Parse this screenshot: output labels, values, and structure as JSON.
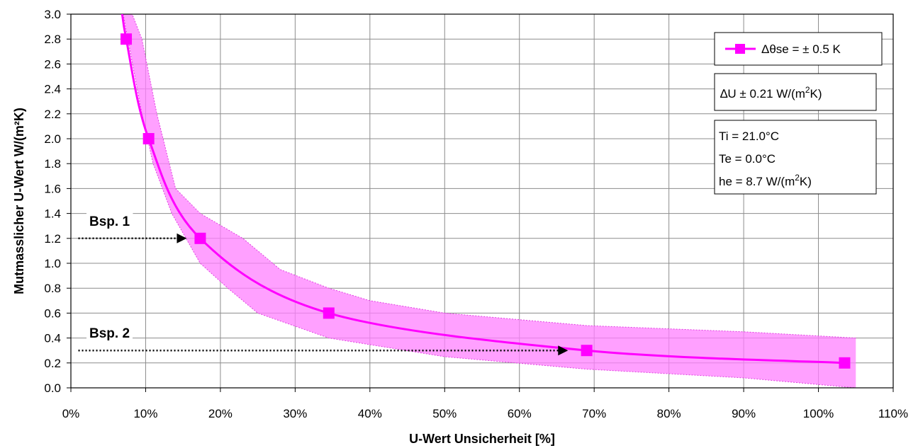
{
  "chart_data": {
    "type": "line",
    "xlabel": "U-Wert Unsicherheit [%]",
    "ylabel": "Mutmasslicher U-Wert W/(m²K)",
    "xlim": [
      0,
      110
    ],
    "ylim": [
      0,
      3.0
    ],
    "x_ticks": [
      "0%",
      "10%",
      "20%",
      "30%",
      "40%",
      "50%",
      "60%",
      "70%",
      "80%",
      "90%",
      "100%",
      "110%"
    ],
    "y_ticks": [
      "0.0",
      "0.2",
      "0.4",
      "0.6",
      "0.8",
      "1.0",
      "1.2",
      "1.4",
      "1.6",
      "1.8",
      "2.0",
      "2.2",
      "2.4",
      "2.6",
      "2.8",
      "3.0"
    ],
    "grid": true,
    "series": [
      {
        "name": "Δθse = ± 0.5 K",
        "color": "#ff00ff",
        "marker": "square",
        "points": [
          {
            "x": 7.4,
            "y": 2.8
          },
          {
            "x": 10.4,
            "y": 2.0
          },
          {
            "x": 17.3,
            "y": 1.2
          },
          {
            "x": 34.5,
            "y": 0.6
          },
          {
            "x": 69.0,
            "y": 0.3
          },
          {
            "x": 103.5,
            "y": 0.2
          }
        ]
      }
    ],
    "band": {
      "color": "#ff80ff",
      "lower": [
        {
          "x": 7.0,
          "y": 3.0
        },
        {
          "x": 9.5,
          "y": 2.2
        },
        {
          "x": 11.0,
          "y": 1.8
        },
        {
          "x": 13.5,
          "y": 1.4
        },
        {
          "x": 17.3,
          "y": 1.0
        },
        {
          "x": 21.0,
          "y": 0.8
        },
        {
          "x": 25.0,
          "y": 0.6
        },
        {
          "x": 34.5,
          "y": 0.4
        },
        {
          "x": 50.0,
          "y": 0.25
        },
        {
          "x": 69.0,
          "y": 0.15
        },
        {
          "x": 90.0,
          "y": 0.08
        },
        {
          "x": 105.0,
          "y": 0.0
        }
      ],
      "upper": [
        {
          "x": 105.0,
          "y": 0.4
        },
        {
          "x": 90.0,
          "y": 0.45
        },
        {
          "x": 69.0,
          "y": 0.5
        },
        {
          "x": 50.0,
          "y": 0.6
        },
        {
          "x": 40.0,
          "y": 0.7
        },
        {
          "x": 34.5,
          "y": 0.8
        },
        {
          "x": 28.0,
          "y": 0.95
        },
        {
          "x": 23.0,
          "y": 1.2
        },
        {
          "x": 17.3,
          "y": 1.4
        },
        {
          "x": 14.0,
          "y": 1.6
        },
        {
          "x": 11.5,
          "y": 2.2
        },
        {
          "x": 9.5,
          "y": 2.8
        },
        {
          "x": 8.2,
          "y": 3.0
        }
      ]
    },
    "annotations": [
      {
        "label": "Bsp.  1",
        "y": 1.2,
        "x_start": 1.0,
        "x_end": 15.5
      },
      {
        "label": "Bsp.  2",
        "y": 0.3,
        "x_start": 1.0,
        "x_end": 66.5
      }
    ],
    "legend": {
      "placement": "top-right",
      "entry": "Δθse = ± 0.5 K",
      "delta_u": {
        "prefix": "∆U   ± 0.21 W/(m",
        "sup": "2",
        "suffix": "K)"
      },
      "conditions": [
        {
          "text": "Ti  = 21.0°C"
        },
        {
          "text": "Te =   0.0°C"
        },
        {
          "prefix": "he =   8.7 W/(m",
          "sup": "2",
          "suffix": "K)"
        }
      ]
    }
  }
}
